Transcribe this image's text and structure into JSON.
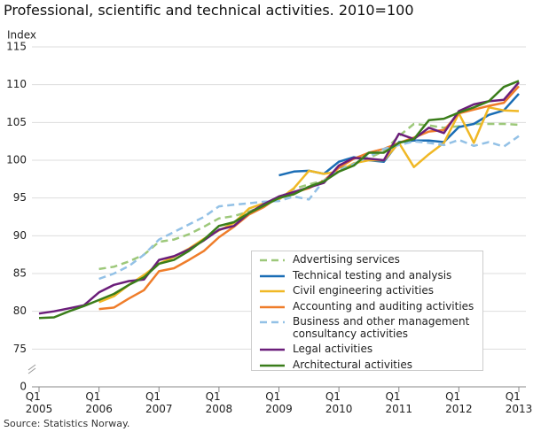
{
  "chart_data": {
    "type": "line",
    "title": "Professional, scientific and technical activities. 2010=100",
    "y_label": "Index",
    "source": "Source: Statistics Norway.",
    "categories": [
      "Q1\n2005",
      null,
      null,
      null,
      "Q1\n2006",
      null,
      null,
      null,
      "Q1\n2007",
      null,
      null,
      null,
      "Q1\n2008",
      null,
      null,
      null,
      "Q1\n2009",
      null,
      null,
      null,
      "Q1\n2010",
      null,
      null,
      null,
      "Q1\n2011",
      null,
      null,
      null,
      "Q1\n2012",
      null,
      null,
      null,
      "Q1\n2013"
    ],
    "ylim": [
      75,
      115
    ],
    "yticks": [
      0,
      75,
      80,
      85,
      90,
      95,
      100,
      105,
      110,
      115
    ],
    "axis_break": true,
    "grid": true,
    "legend": "lower right",
    "series": [
      {
        "name": "Advertising services",
        "color": "#9dc87a",
        "dashed": true,
        "values": [
          null,
          null,
          null,
          null,
          85.6,
          85.9,
          86.6,
          87.5,
          89.2,
          89.5,
          90.2,
          91.2,
          92.3,
          92.6,
          93.2,
          94.0,
          95.0,
          96.2,
          96.8,
          97.3,
          98.8,
          99.5,
          100.3,
          101.2,
          103.2,
          104.8,
          104.6,
          104.3,
          104.5,
          104.8,
          104.8,
          104.8,
          104.7
        ]
      },
      {
        "name": "Technical testing and analysis",
        "color": "#1a6db5",
        "dashed": false,
        "values": [
          null,
          null,
          null,
          null,
          null,
          null,
          null,
          null,
          null,
          null,
          null,
          null,
          null,
          null,
          null,
          null,
          98.0,
          98.5,
          98.6,
          98.2,
          99.8,
          100.4,
          100.0,
          99.8,
          102.4,
          102.6,
          102.6,
          102.4,
          104.4,
          104.8,
          106.0,
          106.6,
          108.8
        ]
      },
      {
        "name": "Civil engineering activities",
        "color": "#f0b825",
        "dashed": false,
        "values": [
          null,
          null,
          null,
          null,
          81.2,
          82.0,
          83.5,
          84.8,
          86.3,
          87.2,
          88.3,
          89.6,
          90.7,
          91.7,
          93.6,
          94.3,
          94.8,
          96.3,
          98.6,
          98.2,
          98.5,
          99.6,
          100.0,
          100.0,
          102.3,
          99.1,
          100.8,
          102.3,
          106.2,
          102.3,
          107.0,
          106.6,
          106.5
        ]
      },
      {
        "name": "Accounting and auditing activities",
        "color": "#ef7d2a",
        "dashed": false,
        "values": [
          null,
          null,
          null,
          null,
          80.3,
          80.5,
          81.7,
          82.8,
          85.3,
          85.7,
          86.8,
          88.0,
          89.8,
          91.2,
          92.8,
          93.8,
          95.2,
          95.7,
          96.3,
          97.3,
          99.0,
          100.2,
          101.0,
          101.5,
          102.3,
          103.0,
          103.8,
          104.0,
          106.2,
          106.7,
          107.2,
          107.6,
          109.8
        ]
      },
      {
        "name": "Business and other management\nconsultancy activities",
        "color": "#93c1e6",
        "dashed": true,
        "values": [
          null,
          null,
          null,
          null,
          84.3,
          85.0,
          86.0,
          87.5,
          89.5,
          90.5,
          91.5,
          92.5,
          93.9,
          94.1,
          94.3,
          94.5,
          94.6,
          95.2,
          94.8,
          97.3,
          98.6,
          99.5,
          100.5,
          101.5,
          102.0,
          102.5,
          102.3,
          102.0,
          102.7,
          101.9,
          102.4,
          101.8,
          103.2
        ]
      },
      {
        "name": "Legal activities",
        "color": "#6b1e7a",
        "dashed": false,
        "values": [
          79.7,
          80.0,
          80.4,
          80.8,
          82.5,
          83.5,
          84.0,
          84.2,
          86.8,
          87.3,
          88.2,
          89.4,
          90.8,
          91.3,
          93.0,
          94.2,
          95.2,
          95.8,
          96.4,
          97.0,
          99.3,
          100.3,
          100.2,
          100.0,
          103.5,
          102.8,
          104.3,
          103.6,
          106.5,
          107.4,
          107.8,
          108.0,
          110.3
        ]
      },
      {
        "name": "Architectural activities",
        "color": "#3a7d1a",
        "dashed": false,
        "values": [
          79.1,
          79.2,
          80.0,
          80.7,
          81.5,
          82.3,
          83.5,
          84.5,
          86.3,
          86.8,
          88.0,
          89.5,
          91.3,
          91.8,
          93.0,
          94.0,
          95.0,
          95.5,
          96.5,
          97.2,
          98.5,
          99.3,
          101.0,
          101.0,
          102.3,
          102.8,
          105.3,
          105.5,
          106.3,
          107.0,
          107.8,
          109.7,
          110.5
        ]
      }
    ]
  }
}
